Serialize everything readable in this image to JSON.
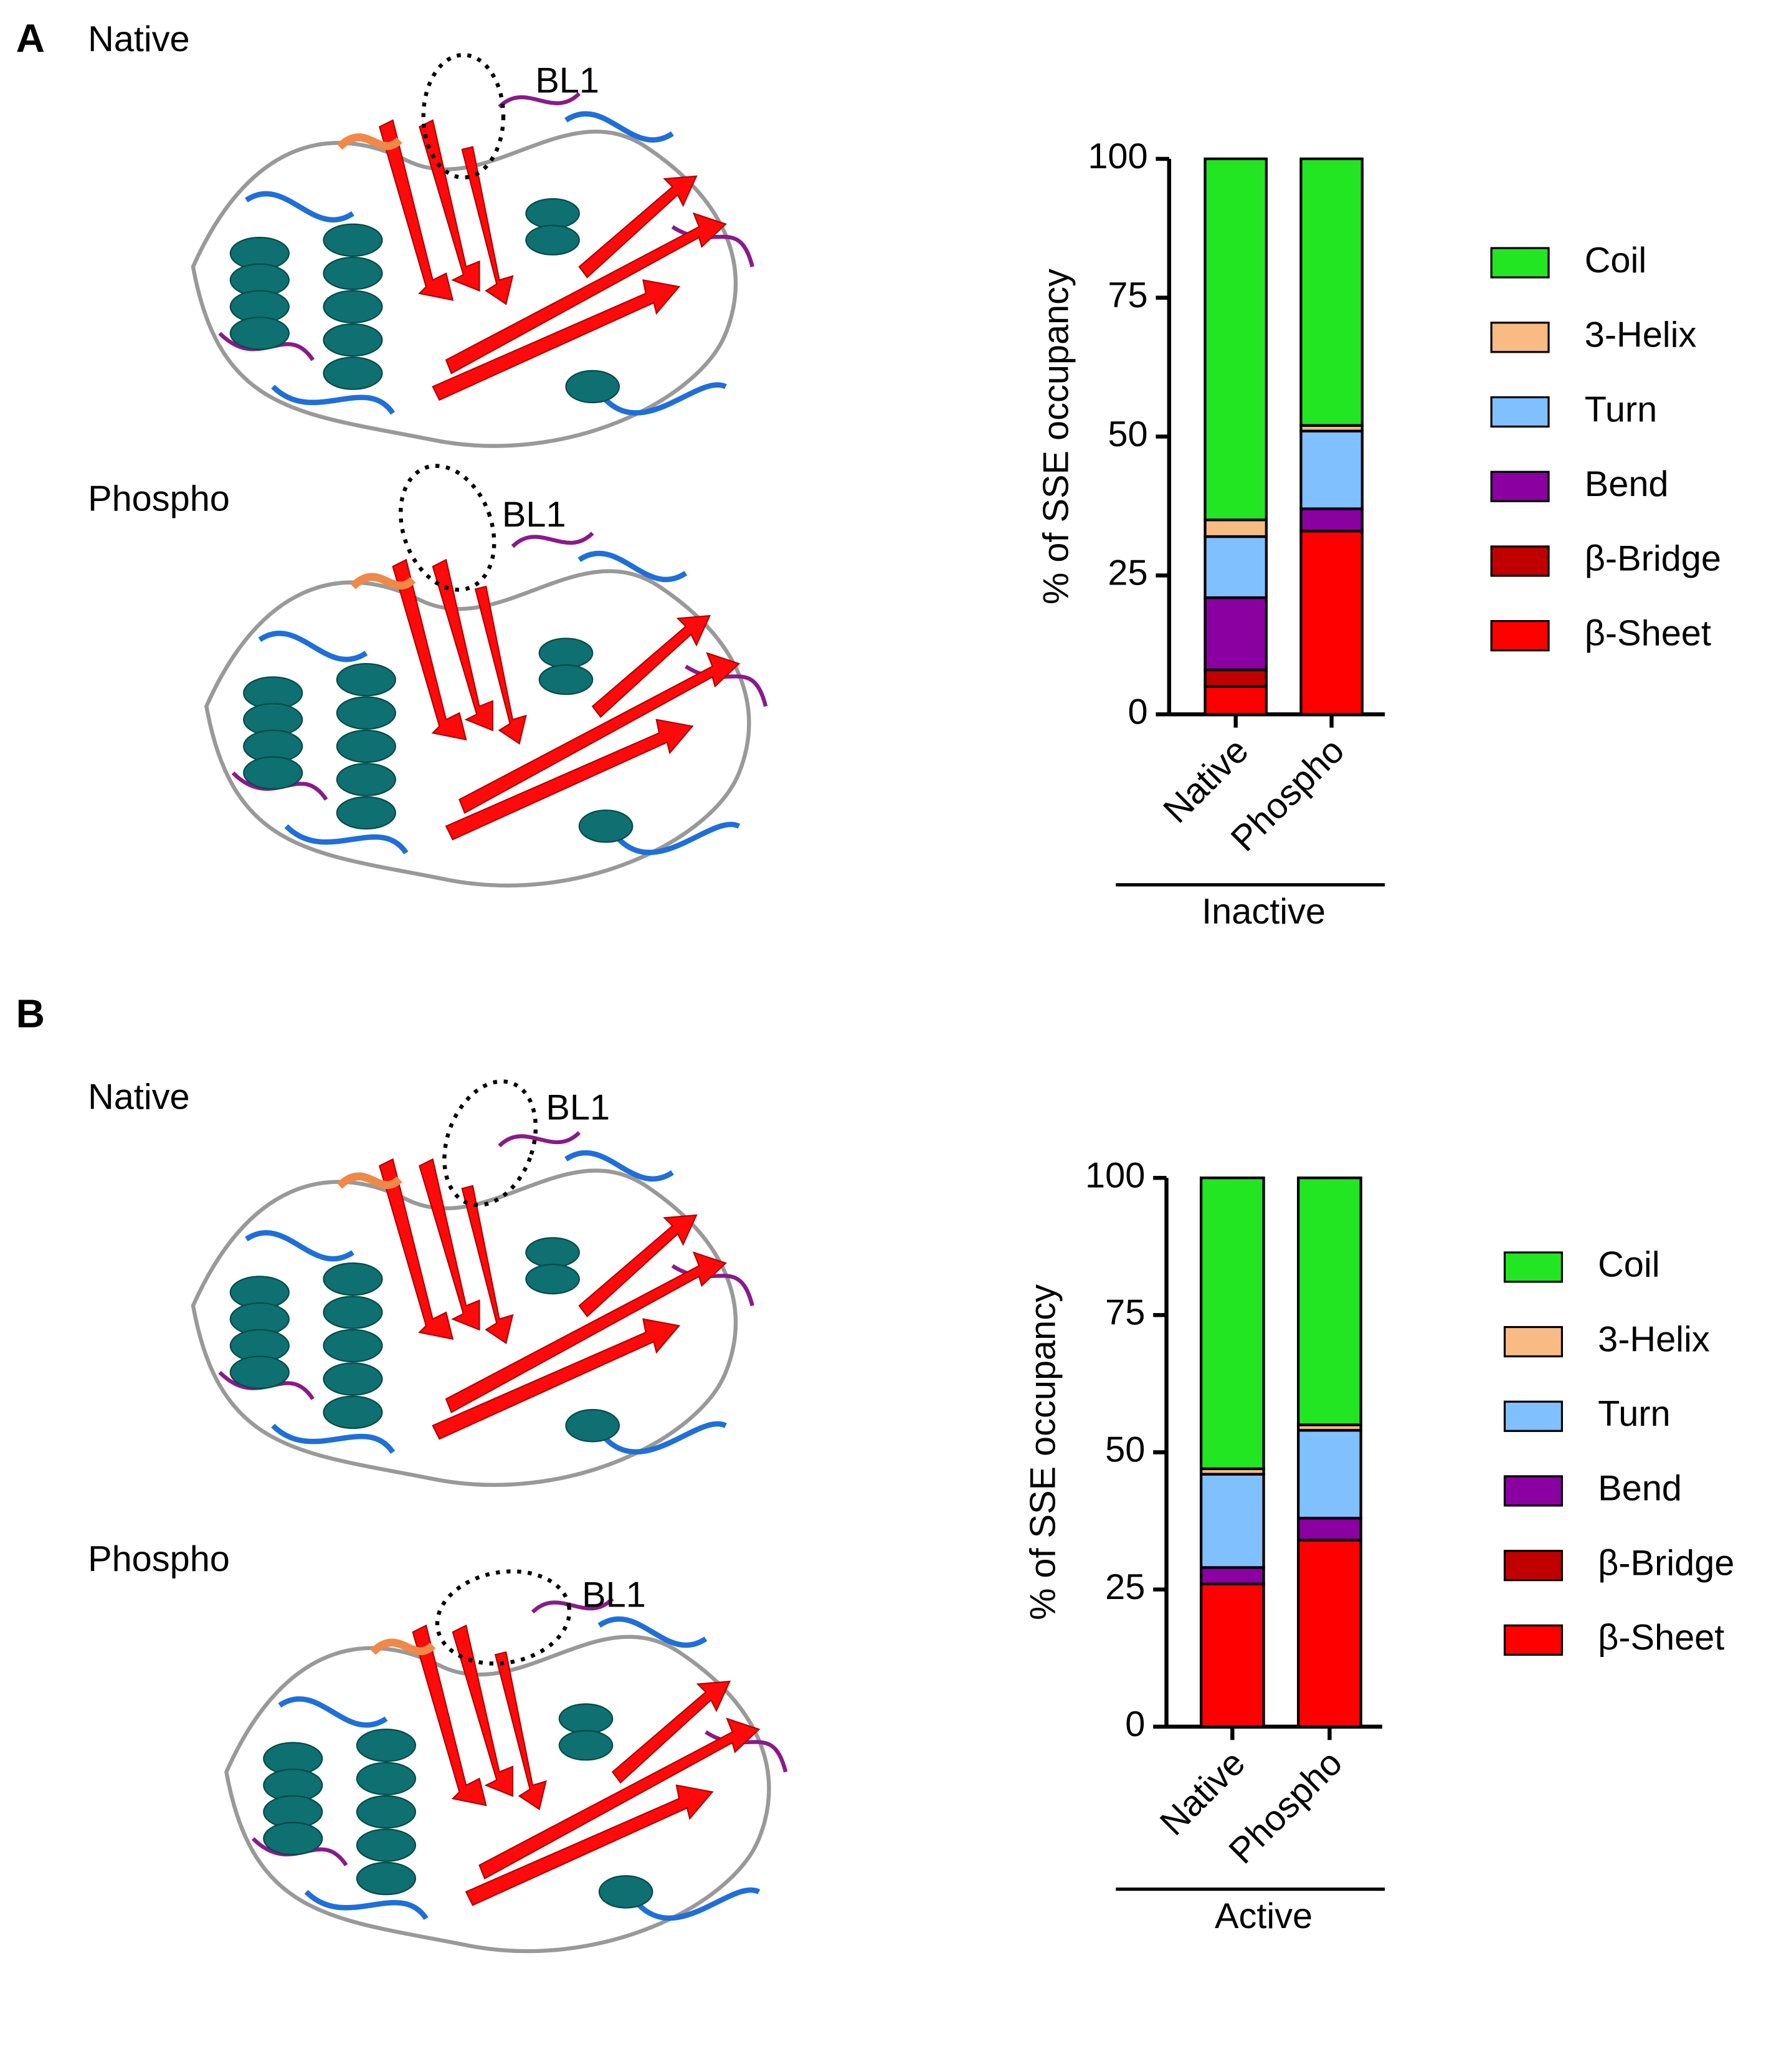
{
  "panels": [
    {
      "label": "A",
      "structures": [
        {
          "label": "Native",
          "annotation": "BL1"
        },
        {
          "label": "Phospho",
          "annotation": "BL1"
        }
      ]
    },
    {
      "label": "B",
      "structures": [
        {
          "label": "Native",
          "annotation": "BL1"
        },
        {
          "label": "Phospho",
          "annotation": "BL1"
        }
      ]
    }
  ],
  "chart_data": [
    {
      "type": "bar",
      "stacked": true,
      "categories": [
        "Native",
        "Phospho"
      ],
      "xlabel": "Inactive",
      "ylabel": "% of SSE occupancy",
      "ylim": [
        0,
        100
      ],
      "yticks": [
        0,
        25,
        50,
        75,
        100
      ],
      "legend": "right",
      "series": [
        {
          "name": "β-Sheet",
          "color": "#ff0000",
          "values": [
            5,
            33
          ]
        },
        {
          "name": "β-Bridge",
          "color": "#c00000",
          "values": [
            3,
            0
          ]
        },
        {
          "name": "Bend",
          "color": "#8b00a0",
          "values": [
            13,
            4
          ]
        },
        {
          "name": "Turn",
          "color": "#80c0ff",
          "values": [
            11,
            14
          ]
        },
        {
          "name": "3-Helix",
          "color": "#f9bb84",
          "values": [
            3,
            1
          ]
        },
        {
          "name": "Coil",
          "color": "#22e622",
          "values": [
            65,
            48
          ]
        }
      ]
    },
    {
      "type": "bar",
      "stacked": true,
      "categories": [
        "Native",
        "Phospho"
      ],
      "xlabel": "Active",
      "ylabel": "% of SSE occupancy",
      "ylim": [
        0,
        100
      ],
      "yticks": [
        0,
        25,
        50,
        75,
        100
      ],
      "legend": "right",
      "series": [
        {
          "name": "β-Sheet",
          "color": "#ff0000",
          "values": [
            26,
            34
          ]
        },
        {
          "name": "β-Bridge",
          "color": "#c00000",
          "values": [
            0,
            0
          ]
        },
        {
          "name": "Bend",
          "color": "#8b00a0",
          "values": [
            3,
            4
          ]
        },
        {
          "name": "Turn",
          "color": "#80c0ff",
          "values": [
            17,
            16
          ]
        },
        {
          "name": "3-Helix",
          "color": "#f9bb84",
          "values": [
            1,
            1
          ]
        },
        {
          "name": "Coil",
          "color": "#22e622",
          "values": [
            53,
            45
          ]
        }
      ]
    }
  ]
}
